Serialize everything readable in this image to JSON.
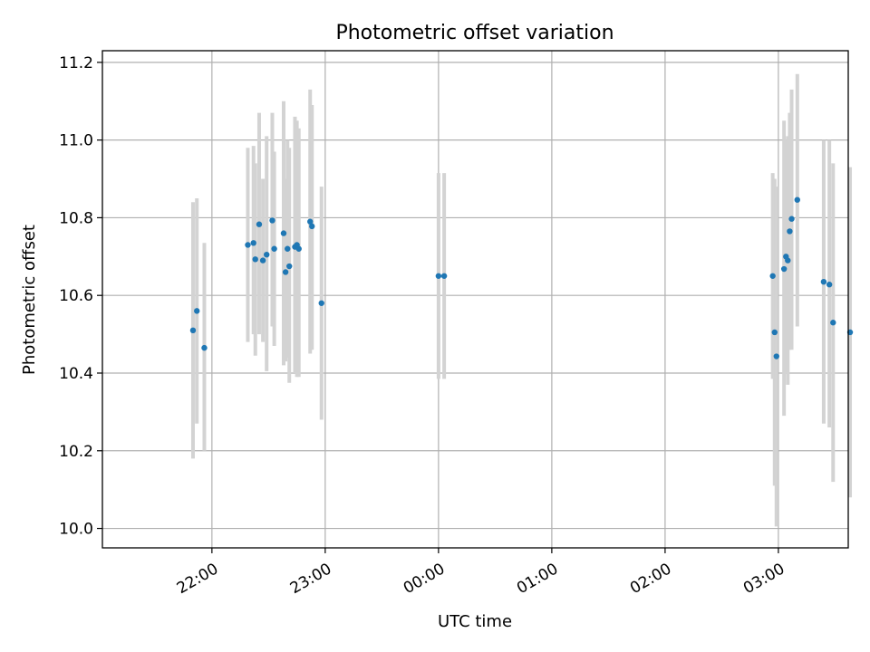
{
  "chart_data": {
    "type": "scatter",
    "title": "Photometric offset variation",
    "xlabel": "UTC time",
    "ylabel": "Photometric offset",
    "x_unit": "UTC time of night (hours; values past 24 are after midnight)",
    "xlim": [
      21.0333,
      27.6167
    ],
    "ylim": [
      9.95,
      11.23
    ],
    "grid": true,
    "x_ticks": [
      {
        "value": 22.0,
        "label": "22:00"
      },
      {
        "value": 23.0,
        "label": "23:00"
      },
      {
        "value": 24.0,
        "label": "00:00"
      },
      {
        "value": 25.0,
        "label": "01:00"
      },
      {
        "value": 26.0,
        "label": "02:00"
      },
      {
        "value": 27.0,
        "label": "03:00"
      }
    ],
    "y_ticks": [
      {
        "value": 10.0,
        "label": "10.0"
      },
      {
        "value": 10.2,
        "label": "10.2"
      },
      {
        "value": 10.4,
        "label": "10.4"
      },
      {
        "value": 10.6,
        "label": "10.6"
      },
      {
        "value": 10.8,
        "label": "10.8"
      },
      {
        "value": 11.0,
        "label": "11.0"
      },
      {
        "value": 11.2,
        "label": "11.2"
      }
    ],
    "colors": {
      "point": "#1f77b4",
      "errorbar": "#d3d3d3"
    },
    "points": [
      {
        "x": 21.833,
        "y": 10.51,
        "lo": 10.18,
        "hi": 10.84
      },
      {
        "x": 21.867,
        "y": 10.56,
        "lo": 10.27,
        "hi": 10.85
      },
      {
        "x": 21.933,
        "y": 10.465,
        "lo": 10.2,
        "hi": 10.735
      },
      {
        "x": 22.317,
        "y": 10.73,
        "lo": 10.48,
        "hi": 10.98
      },
      {
        "x": 22.367,
        "y": 10.735,
        "lo": 10.5,
        "hi": 10.985
      },
      {
        "x": 22.383,
        "y": 10.693,
        "lo": 10.445,
        "hi": 10.94
      },
      {
        "x": 22.417,
        "y": 10.783,
        "lo": 10.5,
        "hi": 11.07
      },
      {
        "x": 22.45,
        "y": 10.69,
        "lo": 10.48,
        "hi": 10.9
      },
      {
        "x": 22.483,
        "y": 10.705,
        "lo": 10.405,
        "hi": 11.01
      },
      {
        "x": 22.533,
        "y": 10.793,
        "lo": 10.52,
        "hi": 11.07
      },
      {
        "x": 22.55,
        "y": 10.72,
        "lo": 10.47,
        "hi": 10.97
      },
      {
        "x": 22.633,
        "y": 10.76,
        "lo": 10.42,
        "hi": 11.1
      },
      {
        "x": 22.65,
        "y": 10.66,
        "lo": 10.43,
        "hi": 10.9
      },
      {
        "x": 22.667,
        "y": 10.72,
        "lo": 10.44,
        "hi": 11.0
      },
      {
        "x": 22.683,
        "y": 10.675,
        "lo": 10.375,
        "hi": 10.98
      },
      {
        "x": 22.733,
        "y": 10.725,
        "lo": 10.4,
        "hi": 11.06
      },
      {
        "x": 22.75,
        "y": 10.73,
        "lo": 10.39,
        "hi": 11.05
      },
      {
        "x": 22.767,
        "y": 10.72,
        "lo": 10.39,
        "hi": 11.03
      },
      {
        "x": 22.867,
        "y": 10.79,
        "lo": 10.45,
        "hi": 11.13
      },
      {
        "x": 22.883,
        "y": 10.778,
        "lo": 10.46,
        "hi": 11.09
      },
      {
        "x": 22.967,
        "y": 10.58,
        "lo": 10.28,
        "hi": 10.88
      },
      {
        "x": 24.0,
        "y": 10.65,
        "lo": 10.385,
        "hi": 10.915
      },
      {
        "x": 24.05,
        "y": 10.65,
        "lo": 10.385,
        "hi": 10.915
      },
      {
        "x": 26.95,
        "y": 10.65,
        "lo": 10.385,
        "hi": 10.915
      },
      {
        "x": 26.967,
        "y": 10.505,
        "lo": 10.11,
        "hi": 10.9
      },
      {
        "x": 26.983,
        "y": 10.443,
        "lo": 10.005,
        "hi": 10.88
      },
      {
        "x": 27.05,
        "y": 10.668,
        "lo": 10.29,
        "hi": 11.05
      },
      {
        "x": 27.067,
        "y": 10.7,
        "lo": 10.4,
        "hi": 11.0
      },
      {
        "x": 27.083,
        "y": 10.69,
        "lo": 10.37,
        "hi": 11.01
      },
      {
        "x": 27.1,
        "y": 10.765,
        "lo": 10.46,
        "hi": 11.07
      },
      {
        "x": 27.117,
        "y": 10.797,
        "lo": 10.46,
        "hi": 11.13
      },
      {
        "x": 27.167,
        "y": 10.846,
        "lo": 10.52,
        "hi": 11.17
      },
      {
        "x": 27.4,
        "y": 10.635,
        "lo": 10.27,
        "hi": 11.0
      },
      {
        "x": 27.45,
        "y": 10.628,
        "lo": 10.26,
        "hi": 11.0
      },
      {
        "x": 27.483,
        "y": 10.53,
        "lo": 10.12,
        "hi": 10.94
      },
      {
        "x": 27.633,
        "y": 10.505,
        "lo": 10.08,
        "hi": 10.93
      }
    ]
  }
}
